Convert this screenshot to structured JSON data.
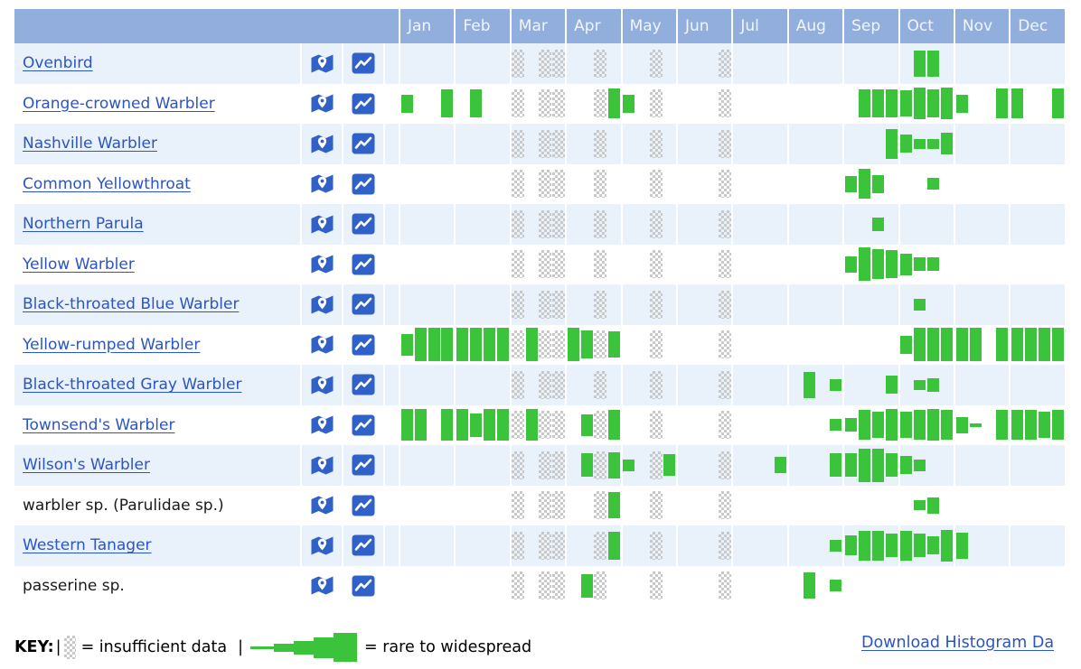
{
  "header": {
    "months": [
      "Jan",
      "Feb",
      "Mar",
      "Apr",
      "May",
      "Jun",
      "Jul",
      "Aug",
      "Sep",
      "Oct",
      "Nov",
      "Dec"
    ]
  },
  "icons": {
    "map_icon": "map-with-location-pin",
    "chart_icon": "line-chart-trend"
  },
  "key_legend": {
    "label": "KEY:",
    "separator": "|",
    "insufficient_text": "= insufficient data",
    "rare_text": "= rare to widespread"
  },
  "download_link": {
    "label": "Download Histogram Da"
  },
  "colors": {
    "header-bg": "#92AEDD",
    "row-alt": "#E9F1FB",
    "bar-green": "#3BC43B",
    "checker-gray": "#C8C8C8",
    "link-blue": "#2B55C4",
    "icon-blue": "#2F61C8"
  },
  "weeks_per_month": 4,
  "insufficient_data_weeks": [
    8,
    10,
    11,
    14,
    18,
    23
  ],
  "rows": [
    {
      "name": "Ovenbird",
      "is_link": true,
      "bars": {
        "37": 65,
        "38": 65
      }
    },
    {
      "name": "Orange-crowned Warbler",
      "is_link": true,
      "bars": {
        "0": 45,
        "3": 70,
        "5": 70,
        "15": 75,
        "16": 45,
        "33": 70,
        "34": 70,
        "35": 70,
        "36": 65,
        "37": 80,
        "38": 70,
        "39": 80,
        "40": 45,
        "43": 75,
        "44": 75,
        "47": 75
      }
    },
    {
      "name": "Nashville Warbler",
      "is_link": true,
      "bars": {
        "35": 75,
        "36": 45,
        "37": 25,
        "38": 25,
        "39": 55
      }
    },
    {
      "name": "Common Yellowthroat",
      "is_link": true,
      "bars": {
        "32": 40,
        "33": 75,
        "34": 45,
        "38": 30
      }
    },
    {
      "name": "Northern Parula",
      "is_link": true,
      "bars": {
        "34": 35
      }
    },
    {
      "name": "Yellow Warbler",
      "is_link": true,
      "bars": {
        "32": 40,
        "33": 85,
        "34": 75,
        "35": 70,
        "36": 55,
        "37": 35,
        "38": 35
      }
    },
    {
      "name": "Black-throated Blue Warbler",
      "is_link": true,
      "bars": {
        "37": 30
      }
    },
    {
      "name": "Yellow-rumped Warbler",
      "is_link": true,
      "bars": {
        "0": 55,
        "1": 85,
        "2": 85,
        "3": 85,
        "4": 85,
        "5": 85,
        "6": 85,
        "7": 85,
        "9": 85,
        "12": 85,
        "13": 70,
        "15": 65,
        "36": 45,
        "37": 85,
        "38": 85,
        "39": 85,
        "40": 85,
        "41": 85,
        "43": 85,
        "44": 85,
        "45": 85,
        "46": 85,
        "47": 85
      }
    },
    {
      "name": "Black-throated Gray Warbler",
      "is_link": true,
      "bars": {
        "29": 65,
        "31": 30,
        "35": 45,
        "37": 25,
        "38": 35
      }
    },
    {
      "name": "Townsend's Warbler",
      "is_link": true,
      "bars": {
        "0": 80,
        "1": 80,
        "3": 80,
        "4": 80,
        "5": 60,
        "6": 80,
        "7": 80,
        "9": 80,
        "13": 55,
        "15": 75,
        "31": 30,
        "32": 35,
        "33": 75,
        "34": 65,
        "35": 80,
        "36": 65,
        "37": 75,
        "38": 80,
        "39": 75,
        "40": 40,
        "41": 8,
        "43": 75,
        "44": 75,
        "45": 75,
        "46": 65,
        "47": 75
      }
    },
    {
      "name": "Wilson's Warbler",
      "is_link": true,
      "bars": {
        "13": 60,
        "15": 65,
        "16": 30,
        "19": 55,
        "27": 40,
        "31": 60,
        "32": 60,
        "33": 85,
        "34": 85,
        "35": 60,
        "36": 45,
        "37": 30
      }
    },
    {
      "name": "warbler sp. (Parulidae sp.)",
      "is_link": false,
      "bars": {
        "15": 65,
        "37": 25,
        "38": 40
      }
    },
    {
      "name": "Western Tanager",
      "is_link": true,
      "bars": {
        "15": 70,
        "31": 30,
        "32": 50,
        "33": 75,
        "34": 75,
        "35": 60,
        "36": 75,
        "37": 60,
        "38": 45,
        "39": 80,
        "40": 65
      }
    },
    {
      "name": "passerine sp.",
      "is_link": false,
      "bars": {
        "13": 60,
        "29": 65,
        "31": 30
      }
    }
  ]
}
